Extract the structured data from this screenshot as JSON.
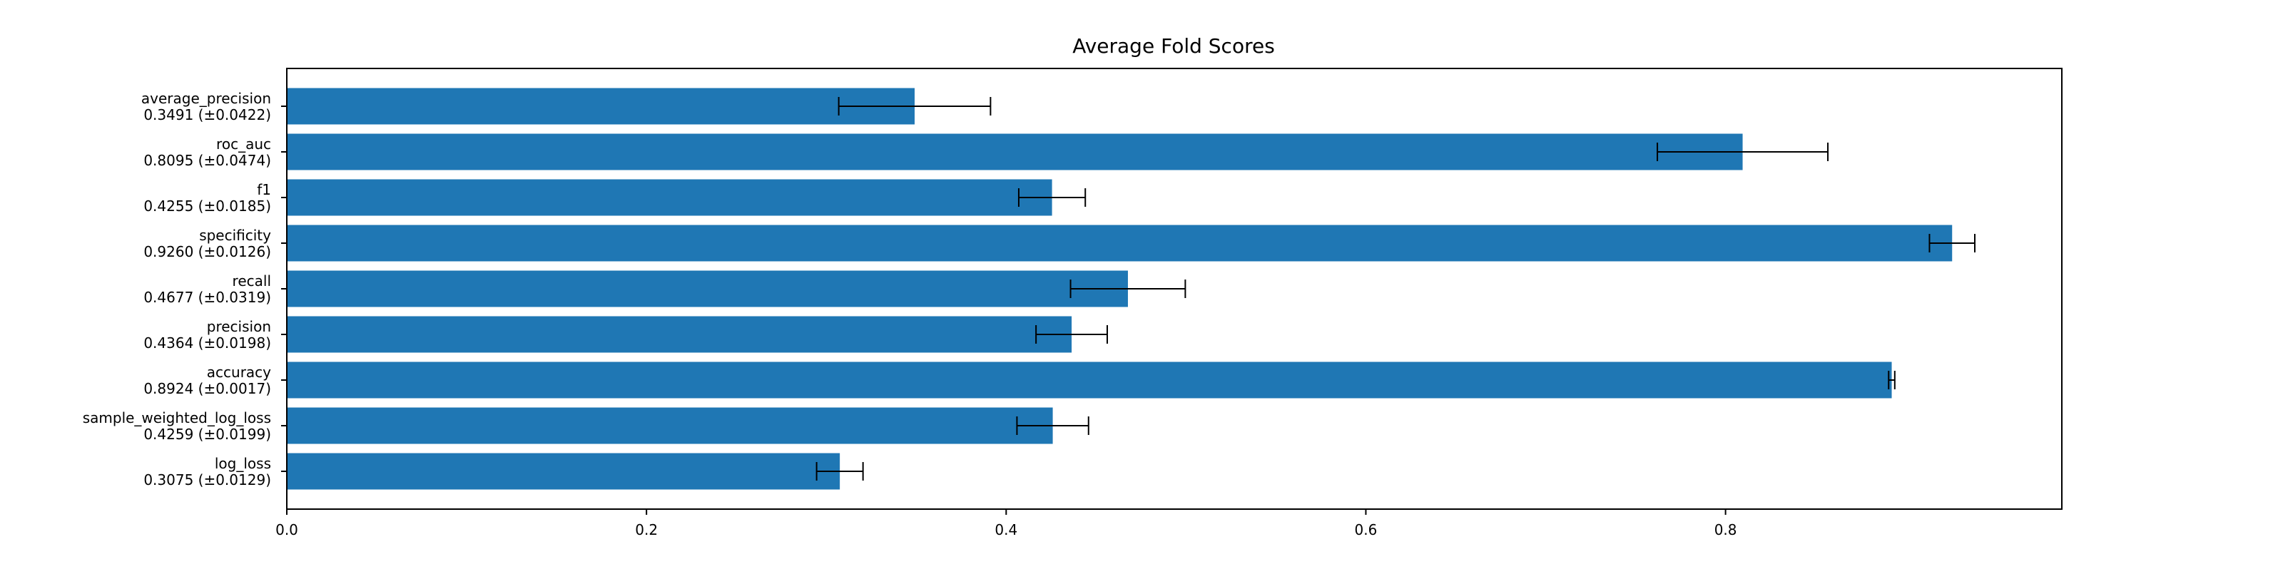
{
  "chart_data": {
    "type": "bar",
    "orientation": "horizontal",
    "title": "Average Fold Scores",
    "xlabel": "",
    "ylabel": "",
    "xlim": [
      0,
      0.987
    ],
    "xticks": [
      "0.0",
      "0.2",
      "0.4",
      "0.6",
      "0.8"
    ],
    "grid": false,
    "bar_color": "#1f77b4",
    "errorbar_color": "#000000",
    "categories": [
      {
        "name": "average_precision",
        "summary": "0.3491 (±0.0422)",
        "value": 0.3491,
        "err": 0.0422
      },
      {
        "name": "roc_auc",
        "summary": "0.8095 (±0.0474)",
        "value": 0.8095,
        "err": 0.0474
      },
      {
        "name": "f1",
        "summary": "0.4255 (±0.0185)",
        "value": 0.4255,
        "err": 0.0185
      },
      {
        "name": "specificity",
        "summary": "0.9260 (±0.0126)",
        "value": 0.926,
        "err": 0.0126
      },
      {
        "name": "recall",
        "summary": "0.4677 (±0.0319)",
        "value": 0.4677,
        "err": 0.0319
      },
      {
        "name": "precision",
        "summary": "0.4364 (±0.0198)",
        "value": 0.4364,
        "err": 0.0198
      },
      {
        "name": "accuracy",
        "summary": "0.8924 (±0.0017)",
        "value": 0.8924,
        "err": 0.0017
      },
      {
        "name": "sample_weighted_log_loss",
        "summary": "0.4259 (±0.0199)",
        "value": 0.4259,
        "err": 0.0199
      },
      {
        "name": "log_loss",
        "summary": "0.3075 (±0.0129)",
        "value": 0.3075,
        "err": 0.0129
      }
    ]
  }
}
